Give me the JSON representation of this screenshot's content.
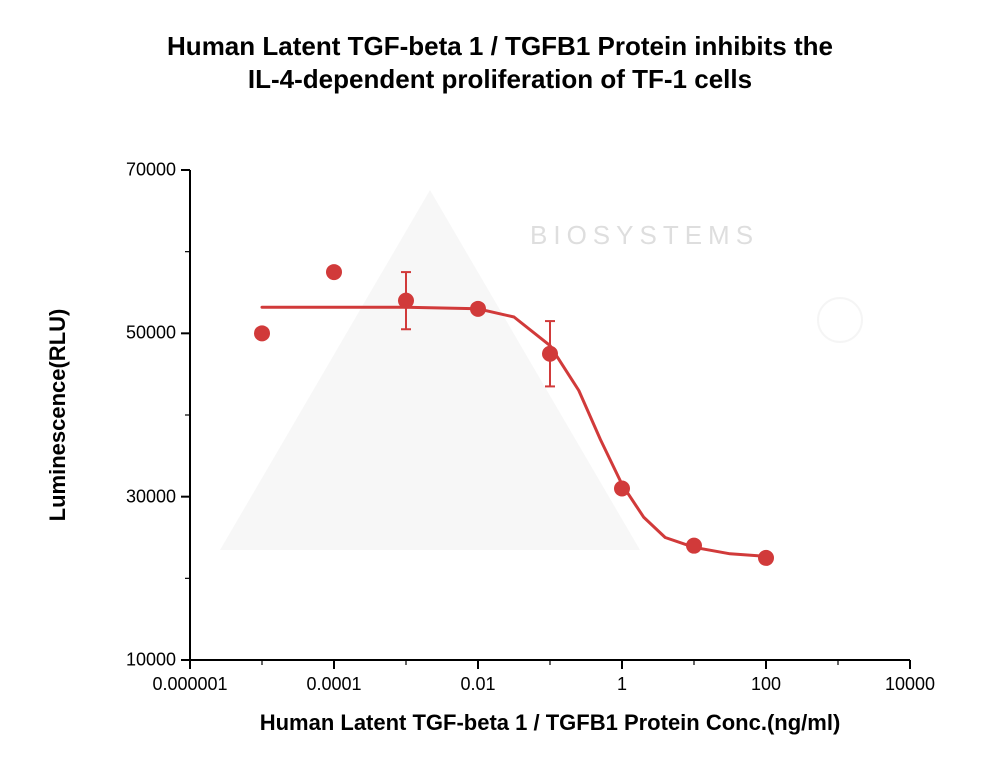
{
  "title_line1": "Human Latent TGF-beta 1 / TGFB1 Protein inhibits the",
  "title_line2": "IL-4-dependent proliferation of TF-1 cells",
  "chart": {
    "type": "line+scatter",
    "background_color": "#ffffff",
    "series_color": "#d13a3a",
    "curve_color": "#d13a3a",
    "marker_size": 8,
    "line_width": 3,
    "error_cap_width": 10,
    "xlabel": "Human Latent TGF-beta 1 / TGFB1 Protein Conc.(ng/ml)",
    "ylabel": "Luminescence(RLU)",
    "title_fontsize": 26,
    "axis_label_fontsize": 22,
    "tick_fontsize": 18,
    "x_scale": "log",
    "y_scale": "linear",
    "x_log_min_exp": -6,
    "x_log_max_exp": 4,
    "x_tick_labels": [
      "0.000001",
      "0.0001",
      "0.01",
      "1",
      "100",
      "10000"
    ],
    "x_tick_exps": [
      -6,
      -4,
      -2,
      0,
      2,
      4
    ],
    "ylim": [
      10000,
      70000
    ],
    "ytick_step": 20000,
    "y_tick_labels": [
      "10000",
      "30000",
      "50000",
      "70000"
    ],
    "y_tick_values": [
      10000,
      30000,
      50000,
      70000
    ],
    "points": [
      {
        "x_exp": -5.0,
        "y": 50000,
        "err": 0
      },
      {
        "x_exp": -4.0,
        "y": 57500,
        "err": 0
      },
      {
        "x_exp": -3.0,
        "y": 54000,
        "err": 3500
      },
      {
        "x_exp": -2.0,
        "y": 53000,
        "err": 0
      },
      {
        "x_exp": -1.0,
        "y": 47500,
        "err": 4000
      },
      {
        "x_exp": 0.0,
        "y": 31000,
        "err": 0
      },
      {
        "x_exp": 1.0,
        "y": 24000,
        "err": 0
      },
      {
        "x_exp": 2.0,
        "y": 22500,
        "err": 0
      }
    ],
    "curve": [
      {
        "x_exp": -5.0,
        "y": 53200
      },
      {
        "x_exp": -4.0,
        "y": 53200
      },
      {
        "x_exp": -3.0,
        "y": 53200
      },
      {
        "x_exp": -2.0,
        "y": 53000
      },
      {
        "x_exp": -1.5,
        "y": 52000
      },
      {
        "x_exp": -1.0,
        "y": 48500
      },
      {
        "x_exp": -0.6,
        "y": 43000
      },
      {
        "x_exp": -0.3,
        "y": 37000
      },
      {
        "x_exp": 0.0,
        "y": 31500
      },
      {
        "x_exp": 0.3,
        "y": 27500
      },
      {
        "x_exp": 0.6,
        "y": 25000
      },
      {
        "x_exp": 1.0,
        "y": 23800
      },
      {
        "x_exp": 1.5,
        "y": 23000
      },
      {
        "x_exp": 2.0,
        "y": 22700
      }
    ]
  },
  "watermark": {
    "triangle_color": "#f2f2f2",
    "text_color": "#dedede",
    "biosystems": "BIOSYSTEMS"
  }
}
